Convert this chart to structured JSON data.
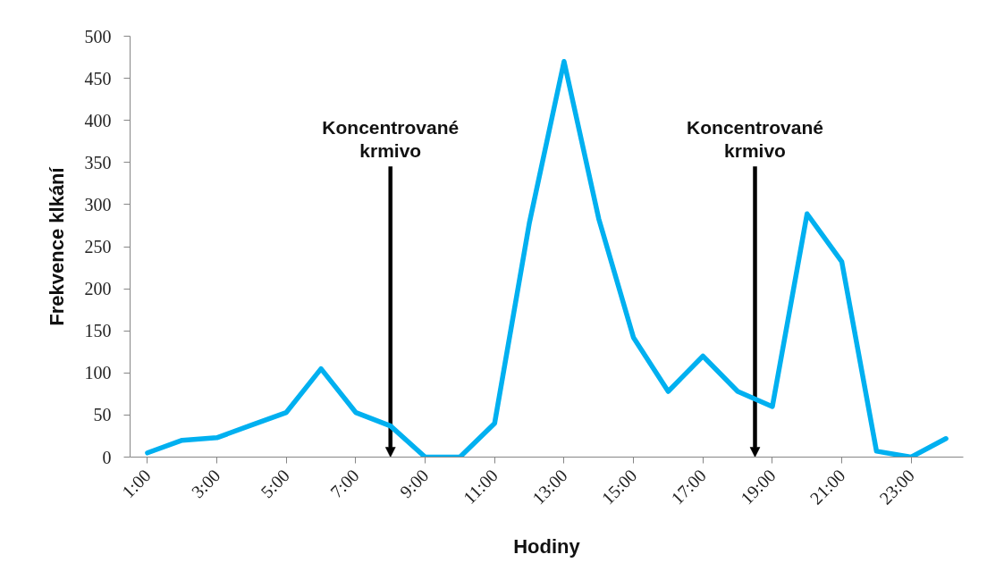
{
  "chart_data": {
    "type": "line",
    "xlabel": "Hodiny",
    "ylabel": "Frekvence klkání",
    "x": [
      1,
      2,
      3,
      4,
      5,
      6,
      7,
      8,
      9,
      10,
      11,
      12,
      13,
      14,
      15,
      16,
      17,
      18,
      19,
      20,
      21,
      22,
      23,
      24
    ],
    "values": [
      5,
      20,
      23,
      38,
      53,
      105,
      53,
      37,
      0,
      0,
      40,
      278,
      470,
      283,
      142,
      78,
      120,
      78,
      60,
      289,
      232,
      7,
      0,
      22
    ],
    "color": "#00b0f0",
    "xlim": [
      0.5,
      24.5
    ],
    "ylim": [
      0,
      500
    ],
    "xticks": [
      {
        "value": 1,
        "label": "1:00"
      },
      {
        "value": 3,
        "label": "3:00"
      },
      {
        "value": 5,
        "label": "5:00"
      },
      {
        "value": 7,
        "label": "7:00"
      },
      {
        "value": 9,
        "label": "9:00"
      },
      {
        "value": 11,
        "label": "11:00"
      },
      {
        "value": 13,
        "label": "13:00"
      },
      {
        "value": 15,
        "label": "15:00"
      },
      {
        "value": 17,
        "label": "17:00"
      },
      {
        "value": 19,
        "label": "19:00"
      },
      {
        "value": 21,
        "label": "21:00"
      },
      {
        "value": 23,
        "label": "23:00"
      }
    ],
    "yticks": [
      0,
      50,
      100,
      150,
      200,
      250,
      300,
      350,
      400,
      450,
      500
    ],
    "ref_lines": [
      {
        "axis": "x",
        "value": 8,
        "label": "Koncentrované krmivo",
        "color": "#000000"
      },
      {
        "axis": "x",
        "value": 18.5,
        "label": "Koncentrované krmivo",
        "color": "#000000"
      }
    ]
  }
}
